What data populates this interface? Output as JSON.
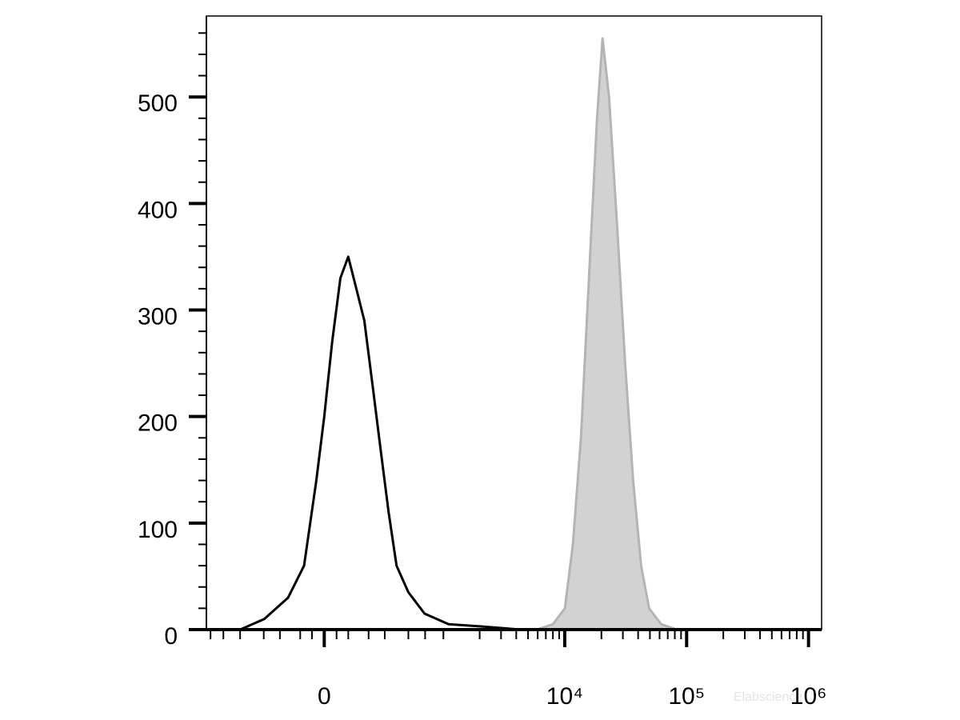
{
  "chart_data": {
    "type": "histogram-overlay",
    "xscale": "arcsinh",
    "xcofactor": 213,
    "xlim": [
      -975,
      1280000
    ],
    "ylim": [
      0,
      576
    ],
    "xticks": [
      {
        "value": 0,
        "label": "0"
      },
      {
        "value": 10000,
        "label": "10⁴"
      },
      {
        "value": 100000,
        "label": "10⁵"
      },
      {
        "value": 1000000,
        "label": "10⁶"
      }
    ],
    "xminorticks": [
      -900,
      -700,
      -500,
      -300,
      -200,
      -100,
      -50,
      50,
      100,
      200,
      300,
      500,
      700,
      1000,
      2000,
      3000,
      4000,
      5000,
      6000,
      7000,
      8000,
      9000,
      20000,
      30000,
      40000,
      50000,
      60000,
      70000,
      80000,
      90000,
      200000,
      300000,
      400000,
      500000,
      600000,
      700000,
      800000,
      900000
    ],
    "yticks": [
      0,
      100,
      200,
      300,
      400,
      500
    ],
    "yminorticks": [
      20,
      40,
      60,
      80,
      120,
      140,
      160,
      180,
      220,
      240,
      260,
      280,
      320,
      340,
      360,
      380,
      420,
      440,
      460,
      480,
      520,
      540,
      560
    ],
    "series": [
      {
        "color": "#000000",
        "fill": null,
        "x": [
          -500,
          -296,
          -157,
          -83,
          -32,
          0,
          32,
          66,
          100,
          137,
          177,
          222,
          271,
          328,
          390,
          500,
          692,
          1104,
          2041,
          4357
        ],
        "values": [
          0,
          10,
          30,
          60,
          140,
          200,
          270,
          330,
          350,
          320,
          290,
          230,
          170,
          110,
          60,
          35,
          15,
          5,
          3,
          0
        ]
      },
      {
        "color": "#b4b4b4",
        "fill": "#d2d2d2",
        "x": [
          5900,
          7990,
          10030,
          11670,
          13590,
          15800,
          18400,
          20450,
          23090,
          26860,
          31270,
          36380,
          42320,
          49250,
          61860,
          83700
        ],
        "values": [
          0,
          5,
          20,
          80,
          180,
          330,
          480,
          555,
          500,
          380,
          250,
          140,
          60,
          20,
          5,
          0
        ]
      }
    ],
    "watermark": "Elabscience"
  }
}
